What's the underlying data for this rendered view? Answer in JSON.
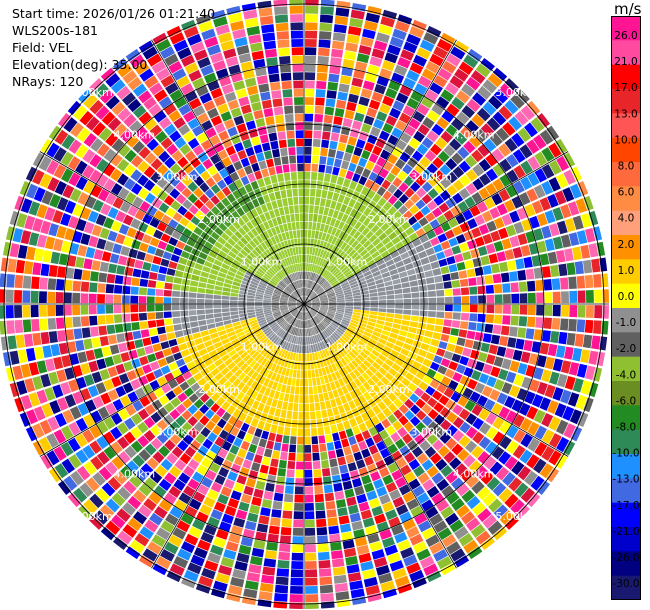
{
  "info": {
    "start_time": "Start time: 2026/01/26 01:21:40",
    "instrument": "WLS200s-181",
    "field": "Field: VEL",
    "elevation": "Elevation(deg): 35.00",
    "nrays": "NRays: 120"
  },
  "colorbar": {
    "unit": "m/s",
    "ticks": [
      "26.0",
      "21.0",
      "17.0",
      "13.0",
      "10.0",
      "8.0",
      "6.0",
      "4.0",
      "2.0",
      "1.0",
      "0.0",
      "-1.0",
      "-2.0",
      "-4.0",
      "-6.0",
      "-8.0",
      "-10.0",
      "-13.0",
      "-17.0",
      "-21.0",
      "-26.0",
      "-30.0"
    ],
    "colors": [
      "#ff1493",
      "#ff4aa0",
      "#ff0000",
      "#e8262a",
      "#ff5555",
      "#ff4500",
      "#ff6a3c",
      "#ff8c42",
      "#ffa07a",
      "#ff9000",
      "#ffcc00",
      "#ffff00",
      "#909090",
      "#606060",
      "#8fc031",
      "#6b8e23",
      "#228b22",
      "#2e8b57",
      "#1e90ff",
      "#4169e1",
      "#0000ff",
      "#0000cd",
      "#000080",
      "#191970"
    ]
  },
  "range_labels": [
    "1.00km",
    "2.00km",
    "3.00km",
    "4.00km",
    "5.00km"
  ],
  "nrays": 120
}
